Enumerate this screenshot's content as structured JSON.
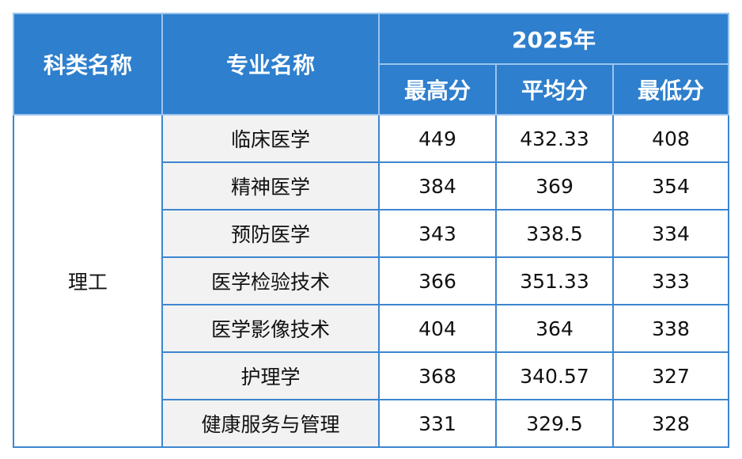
{
  "header": {
    "category": "科类名称",
    "major": "专业名称",
    "year": "2025年",
    "columns": [
      "最高分",
      "平均分",
      "最低分"
    ]
  },
  "table": {
    "category": "理工",
    "rows": [
      [
        "临床医学",
        449,
        432.33,
        408
      ],
      [
        "精神医学",
        384,
        369,
        354
      ],
      [
        "预防医学",
        343,
        338.5,
        334
      ],
      [
        "医学检验技术",
        366,
        351.33,
        333
      ],
      [
        "医学影像技术",
        404,
        364,
        338
      ],
      [
        "护理学",
        368,
        340.57,
        327
      ],
      [
        "健康服务与管理",
        331,
        329.5,
        328
      ]
    ]
  }
}
